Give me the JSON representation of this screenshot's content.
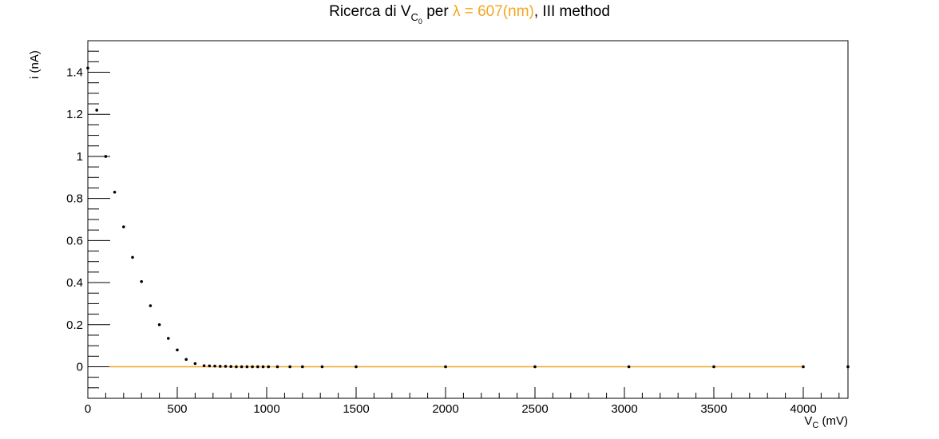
{
  "chart_data": {
    "type": "scatter",
    "title": {
      "prefix": "Ricerca di V",
      "sub": "C",
      "subsub": "0",
      "middle": " per ",
      "highlight": "λ = 607(nm)",
      "suffix": ", III method"
    },
    "xlabel": {
      "main": "V",
      "sub": "C",
      "unit": " (mV)"
    },
    "ylabel": "i (nA)",
    "xlim": [
      0,
      4250
    ],
    "ylim": [
      -0.15,
      1.55
    ],
    "x_ticks": [
      0,
      500,
      1000,
      1500,
      2000,
      2500,
      3000,
      3500,
      4000
    ],
    "y_ticks": [
      0,
      0.2,
      0.4,
      0.6,
      0.8,
      1,
      1.2,
      1.4
    ],
    "grid": false,
    "series": [
      {
        "points": [
          [
            0,
            1.42
          ],
          [
            50,
            1.22
          ],
          [
            100,
            1.0
          ],
          [
            150,
            0.83
          ],
          [
            200,
            0.665
          ],
          [
            250,
            0.52
          ],
          [
            300,
            0.405
          ],
          [
            350,
            0.29
          ],
          [
            400,
            0.2
          ],
          [
            450,
            0.135
          ],
          [
            500,
            0.08
          ],
          [
            550,
            0.035
          ],
          [
            600,
            0.015
          ],
          [
            650,
            0.005
          ],
          [
            680,
            0.004
          ],
          [
            710,
            0.003
          ],
          [
            740,
            0.002
          ],
          [
            770,
            0.002
          ],
          [
            800,
            0.001
          ],
          [
            830,
            0.0
          ],
          [
            860,
            0.0
          ],
          [
            890,
            0.0
          ],
          [
            920,
            0.0
          ],
          [
            950,
            0.0
          ],
          [
            980,
            0.0
          ],
          [
            1010,
            0.0
          ],
          [
            1060,
            0.0
          ],
          [
            1130,
            0.0
          ],
          [
            1200,
            0.0
          ],
          [
            1310,
            0.0
          ],
          [
            1500,
            0.0
          ],
          [
            2000,
            0.0
          ],
          [
            2500,
            0.0
          ],
          [
            3025,
            0.0
          ],
          [
            3500,
            0.0
          ],
          [
            4000,
            0.0
          ],
          [
            4250,
            0.0
          ]
        ]
      }
    ],
    "fit_line": {
      "x": [
        120,
        4000
      ],
      "y": [
        0,
        0
      ]
    },
    "colors": {
      "fit": "#f5a623",
      "highlight": "#f5a623",
      "points": "#000000",
      "axis": "#000000"
    }
  }
}
